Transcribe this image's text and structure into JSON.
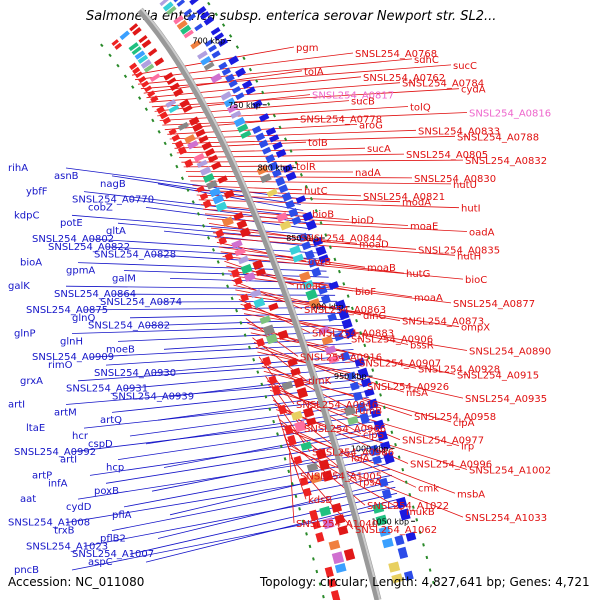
{
  "title": "Salmonella enterica subsp. enterica serovar Newport str. SL2...",
  "footer": {
    "accession": "Accession: NC_011080",
    "stats": "Topology: circular; Length: 4,827,641 bp; Genes: 4,721"
  },
  "colors": {
    "left_labels": "#1515c8",
    "right_labels": "#e01010",
    "pink_labels": "#ee66cc",
    "ring_gray": "#999999",
    "tick_green": "#2a8a2a"
  },
  "kbp_ticks": [
    "700 kbp",
    "750 kbp",
    "800 kbp",
    "850 kbp",
    "900 kbp",
    "950 kbp",
    "1000 kbp",
    "1050 kbp"
  ],
  "left_labels": [
    "rihA",
    "asnB",
    "nagB",
    "ybfF",
    "SNSL254_A0770",
    "cobZ",
    "kdpC",
    "potE",
    "gltA",
    "SNSL254_A0802",
    "SNSL254_A0822",
    "SNSL254_A0828",
    "bioA",
    "gpmA",
    "galM",
    "galK",
    "SNSL254_A0864",
    "SNSL254_A0874",
    "SNSL254_A0875",
    "glnQ",
    "SNSL254_A0882",
    "glnP",
    "glnH",
    "moeB",
    "SNSL254_A0909",
    "rimO",
    "SNSL254_A0930",
    "grxA",
    "SNSL254_A0931",
    "SNSL254_A0939",
    "artI",
    "artM",
    "artQ",
    "ltaE",
    "hcr",
    "cspD",
    "SNSL254_A0992",
    "artI",
    "hcp",
    "artP",
    "infA",
    "poxB",
    "aat",
    "cydD",
    "pflA",
    "SNSL254_A1008",
    "trxB",
    "pflB2",
    "SNSL254_A1023",
    "SNSL254_A1007",
    "aspC",
    "pncB"
  ],
  "right_labels": [
    "pgm",
    "SNSL254_A0768",
    "sdhC",
    "sucC",
    "tolA",
    "SNSL254_A0762",
    "SNSL254_A0784",
    "cydA",
    "SNSL254_A0817",
    "sucB",
    "tolQ",
    "SNSL254_A0816",
    "SNSL254_A0778",
    "aroG",
    "SNSL254_A0833",
    "SNSL254_A0788",
    "tolB",
    "sucA",
    "SNSL254_A0805",
    "SNSL254_A0832",
    "tolR",
    "nadA",
    "SNSL254_A0830",
    "hutU",
    "hutC",
    "SNSL254_A0821",
    "modA",
    "hutI",
    "bioB",
    "bioD",
    "moaE",
    "oadA",
    "SNSL254_A0844",
    "moaD",
    "SNSL254_A0835",
    "hutH",
    "uvrB",
    "moaB",
    "hutG",
    "bioC",
    "moaC",
    "bioF",
    "moaA",
    "SNSL254_A0877",
    "SNSL254_A0863",
    "dinG",
    "SNSL254_A0873",
    "ompX",
    "SNSL254_A0883",
    "SNSL254_A0906",
    "bssR",
    "SNSL254_A0890",
    "SNSL254_A0916",
    "SNSL254_A0907",
    "SNSL254_A0928",
    "SNSL254_A0915",
    "rimK",
    "SNSL254_A0926",
    "nfsA",
    "SNSL254_A0935",
    "SNSL254_A0946",
    "rumB",
    "SNSL254_A0958",
    "clpA",
    "SNSL254_A0966",
    "clpS",
    "SNSL254_A0977",
    "lrp",
    "SNSL254_A0986",
    "lolA",
    "SNSL254_A0996",
    "SNSL254_A1002",
    "SNSL254_A1005",
    "rpsA",
    "cmk",
    "msbA",
    "kdsB",
    "SNSL254_A1022",
    "mukB",
    "SNSL254_A1033",
    "SNSL254_A1040",
    "SNSL254_A1062"
  ]
}
